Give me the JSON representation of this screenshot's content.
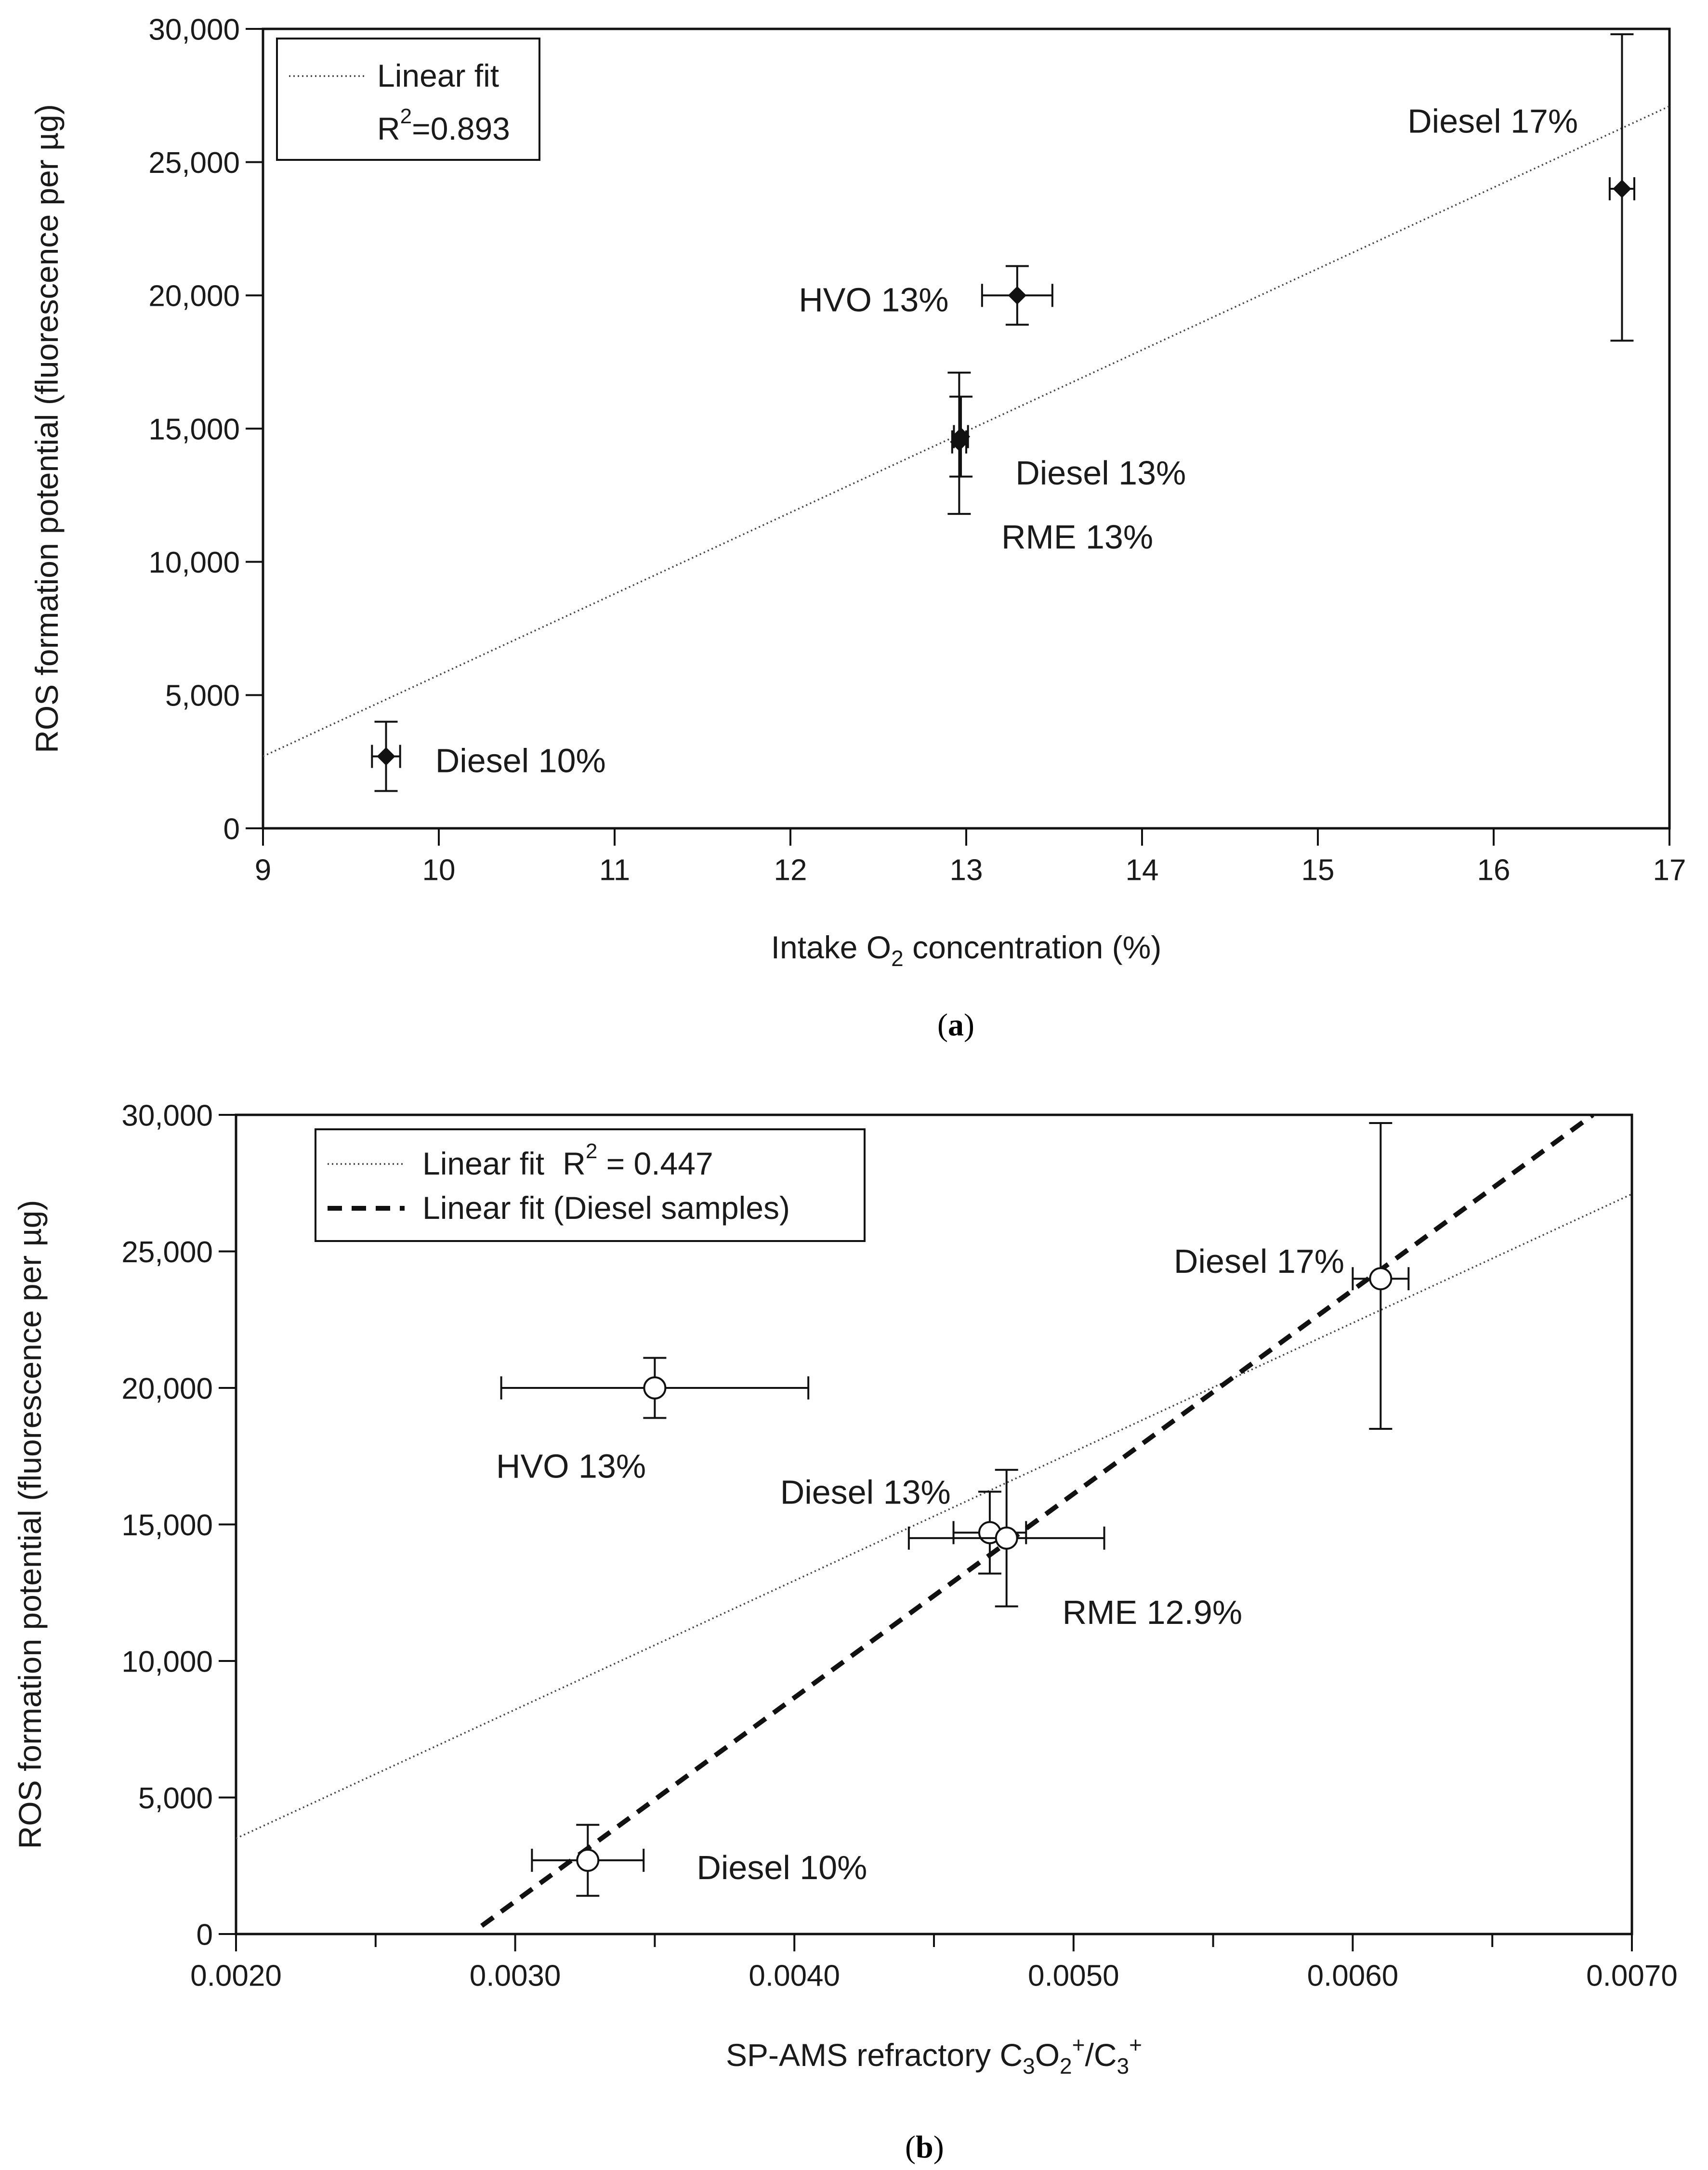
{
  "chart_data": [
    {
      "id": "a",
      "type": "scatter",
      "panel_label": "a",
      "xlabel": {
        "pre": "Intake O",
        "sub": "2",
        "post": " concentration (%)"
      },
      "ylabel": "ROS formation potential (fluorescence per µg)",
      "xlim": [
        9,
        17
      ],
      "ylim": [
        0,
        30000
      ],
      "xticks": [
        9,
        10,
        11,
        12,
        13,
        14,
        15,
        16,
        17
      ],
      "xtick_labels": [
        "9",
        "10",
        "11",
        "12",
        "13",
        "14",
        "15",
        "16",
        "17"
      ],
      "xminor": [],
      "yticks": [
        0,
        5000,
        10000,
        15000,
        20000,
        25000,
        30000
      ],
      "ytick_labels": [
        "0",
        "5,000",
        "10,000",
        "15,000",
        "20,000",
        "25,000",
        "30,000"
      ],
      "marker": "filled-diamond",
      "grid": false,
      "legend": {
        "position": "top-left",
        "entries": [
          {
            "style": "dotted",
            "label": "Linear fit",
            "extra": {
              "pre": "R",
              "sup": "2",
              "post": "=0.893"
            }
          }
        ]
      },
      "fits": [
        {
          "style": "dotted",
          "x": [
            9,
            17
          ],
          "y": [
            2700,
            27100
          ]
        }
      ],
      "points": [
        {
          "label": "Diesel 10%",
          "x": 9.7,
          "y": 2700,
          "xerr": 0.08,
          "yerr_low": 1300,
          "yerr_high": 1300,
          "text_x": 9.98,
          "text_y": 2500,
          "anchor": "start"
        },
        {
          "label": "Diesel 13%",
          "x": 12.97,
          "y": 14700,
          "xerr": 0.04,
          "yerr_low": 1500,
          "yerr_high": 1500,
          "text_x": 13.28,
          "text_y": 13300,
          "anchor": "start"
        },
        {
          "label": "RME 13%",
          "x": 12.96,
          "y": 14500,
          "xerr": 0.04,
          "yerr_low": 2700,
          "yerr_high": 2600,
          "text_x": 13.2,
          "text_y": 10900,
          "anchor": "start"
        },
        {
          "label": "HVO 13%",
          "x": 13.29,
          "y": 20000,
          "xerr": 0.2,
          "yerr_low": 1100,
          "yerr_high": 1100,
          "text_x": 12.9,
          "text_y": 19800,
          "anchor": "end"
        },
        {
          "label": "Diesel 17%",
          "x": 16.73,
          "y": 24000,
          "xerr": 0.07,
          "yerr_low": 5700,
          "yerr_high": 5800,
          "text_x": 16.48,
          "text_y": 26500,
          "anchor": "end"
        }
      ]
    },
    {
      "id": "b",
      "type": "scatter",
      "panel_label": "b",
      "xlabel": {
        "pre": "SP-AMS refractory C",
        "sub": "3",
        "mid": "O",
        "sub2": "2",
        "sup": "+",
        "post": "/C",
        "sub3": "3",
        "sup2": "+"
      },
      "ylabel": "ROS formation potential (fluorescence per µg)",
      "xlim": [
        0.002,
        0.007
      ],
      "ylim": [
        0,
        30000
      ],
      "xticks": [
        0.002,
        0.003,
        0.004,
        0.005,
        0.006,
        0.007
      ],
      "xtick_labels": [
        "0.0020",
        "0.0030",
        "0.0040",
        "0.0050",
        "0.0060",
        "0.0070"
      ],
      "xminor": [
        0.0025,
        0.0035,
        0.0045,
        0.0055,
        0.0065
      ],
      "yticks": [
        0,
        5000,
        10000,
        15000,
        20000,
        25000,
        30000
      ],
      "ytick_labels": [
        "0",
        "5,000",
        "10,000",
        "15,000",
        "20,000",
        "25,000",
        "30,000"
      ],
      "marker": "open-circle",
      "grid": false,
      "legend": {
        "position": "top-left",
        "entries": [
          {
            "style": "dotted",
            "label": "Linear fit",
            "extra": {
              "pre": "R",
              "sup": "2",
              "post": " = 0.447"
            }
          },
          {
            "style": "dashed",
            "label": "Linear fit (Diesel samples)"
          }
        ]
      },
      "fits": [
        {
          "style": "dotted",
          "x": [
            0.002,
            0.007
          ],
          "y": [
            3500,
            27100
          ]
        },
        {
          "style": "dashed",
          "x": [
            0.00288,
            0.00686
          ],
          "y": [
            300,
            30000
          ]
        }
      ],
      "points": [
        {
          "label": "Diesel 10%",
          "x": 0.00326,
          "y": 2700,
          "xerr": 0.0002,
          "yerr_low": 1300,
          "yerr_high": 1300,
          "text_x": 0.00365,
          "text_y": 2400,
          "anchor": "start"
        },
        {
          "label": "HVO 13%",
          "x": 0.0035,
          "y": 20000,
          "xerr": 0.00055,
          "yerr_low": 1100,
          "yerr_high": 1100,
          "text_x": 0.0032,
          "text_y": 17100,
          "anchor": "middle"
        },
        {
          "label": "Diesel 13%",
          "x": 0.0047,
          "y": 14700,
          "xerr": 0.00013,
          "yerr_low": 1500,
          "yerr_high": 1500,
          "text_x": 0.00456,
          "text_y": 16150,
          "anchor": "end"
        },
        {
          "label": "RME 12.9%",
          "x": 0.00476,
          "y": 14500,
          "xerr": 0.00035,
          "yerr_low": 2500,
          "yerr_high": 2500,
          "text_x": 0.00496,
          "text_y": 11750,
          "anchor": "start"
        },
        {
          "label": "Diesel 17%",
          "x": 0.0061,
          "y": 24000,
          "xerr": 0.0001,
          "yerr_low": 5500,
          "yerr_high": 5700,
          "text_x": 0.00597,
          "text_y": 24600,
          "anchor": "end"
        }
      ]
    }
  ]
}
